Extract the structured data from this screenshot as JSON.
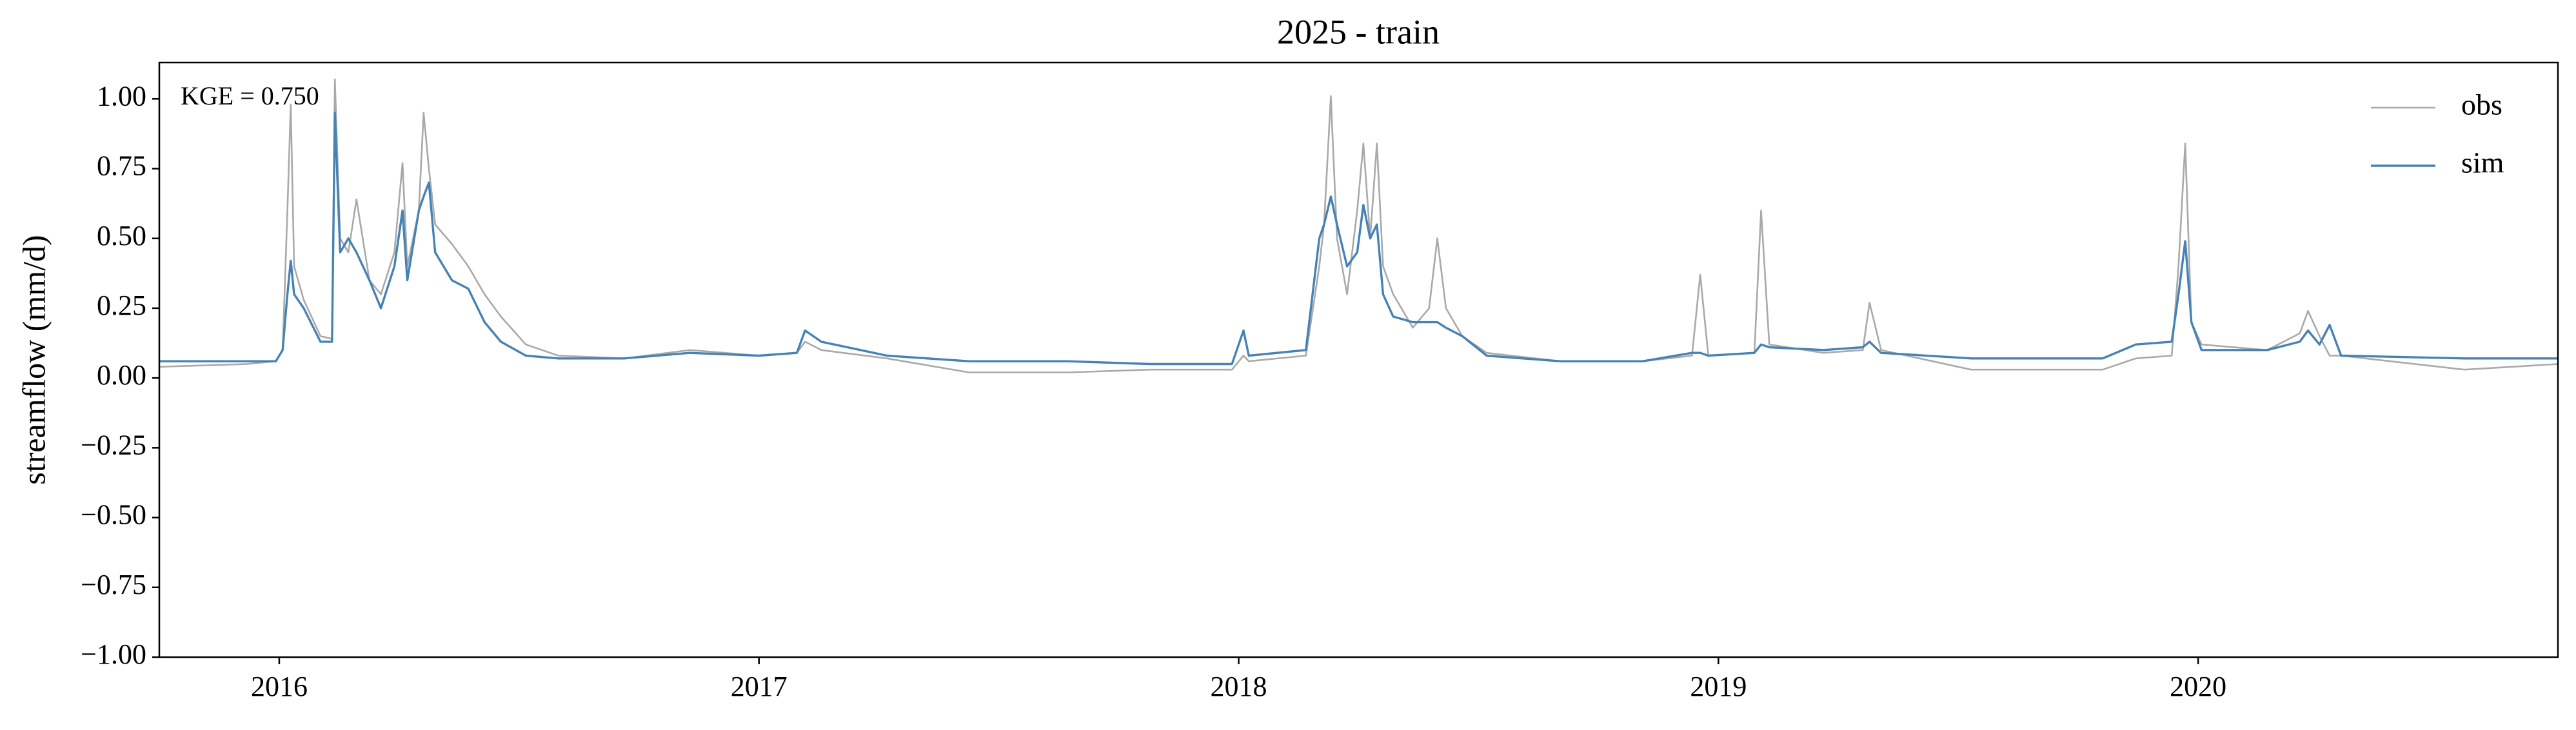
{
  "chart_data": {
    "type": "line",
    "title": "2025 - train",
    "ylabel": "streamflow (mm/d)",
    "annotation": "KGE = 0.750",
    "legend": "upper right",
    "grid": false,
    "xlim": [
      2015.75,
      2020.75
    ],
    "xticks": [
      2016,
      2017,
      2018,
      2019,
      2020
    ],
    "ylim": [
      -1,
      1.13
    ],
    "yticks": [
      {
        "value": 1,
        "label": "1.00"
      },
      {
        "value": 0.75,
        "label": "0.75"
      },
      {
        "value": 0.5,
        "label": "0.50"
      },
      {
        "value": 0.25,
        "label": "0.25"
      },
      {
        "value": 0,
        "label": "0.00"
      },
      {
        "value": -0.25,
        "label": "−0.25"
      },
      {
        "value": -0.5,
        "label": "−0.50"
      },
      {
        "value": -0.75,
        "label": "−0.75"
      },
      {
        "value": -1,
        "label": "−1.00"
      }
    ],
    "x": [
      2015.75,
      2015.932,
      2015.993,
      2016.007,
      2016.017,
      2016.024,
      2016.031,
      2016.051,
      2016.086,
      2016.11,
      2016.116,
      2016.127,
      2016.144,
      2016.161,
      2016.188,
      2016.212,
      2016.24,
      2016.257,
      2016.267,
      2016.291,
      2016.301,
      2016.312,
      2016.325,
      2016.36,
      2016.394,
      2016.428,
      2016.462,
      2016.514,
      2016.582,
      2016.719,
      2016.856,
      2017,
      2017.079,
      2017.096,
      2017.13,
      2017.267,
      2017.438,
      2017.644,
      2017.815,
      2017.986,
      2018.01,
      2018.021,
      2018.14,
      2018.168,
      2018.178,
      2018.192,
      2018.205,
      2018.226,
      2018.247,
      2018.26,
      2018.274,
      2018.288,
      2018.301,
      2018.322,
      2018.363,
      2018.397,
      2018.414,
      2018.432,
      2018.466,
      2018.517,
      2018.671,
      2018.842,
      2018.945,
      2018.962,
      2018.979,
      2019.075,
      2019.089,
      2019.106,
      2019.219,
      2019.301,
      2019.315,
      2019.339,
      2019.527,
      2019.801,
      2019.87,
      2019.945,
      2019.959,
      2019.973,
      2019.986,
      2020.007,
      2020.144,
      2020.212,
      2020.229,
      2020.253,
      2020.274,
      2020.298,
      2020.555,
      2020.75
    ],
    "series": [
      {
        "name": "obs",
        "color": "#a9a9a9",
        "values": [
          0.04,
          0.05,
          0.06,
          0.1,
          0.6,
          0.98,
          0.4,
          0.28,
          0.15,
          0.14,
          1.07,
          0.5,
          0.45,
          0.64,
          0.35,
          0.3,
          0.45,
          0.77,
          0.4,
          0.6,
          0.95,
          0.75,
          0.55,
          0.48,
          0.4,
          0.3,
          0.22,
          0.12,
          0.08,
          0.07,
          0.1,
          0.08,
          0.09,
          0.13,
          0.1,
          0.07,
          0.02,
          0.02,
          0.03,
          0.03,
          0.08,
          0.06,
          0.08,
          0.4,
          0.55,
          1.01,
          0.5,
          0.3,
          0.6,
          0.84,
          0.5,
          0.84,
          0.4,
          0.3,
          0.18,
          0.25,
          0.5,
          0.25,
          0.15,
          0.09,
          0.06,
          0.06,
          0.08,
          0.37,
          0.08,
          0.09,
          0.6,
          0.12,
          0.09,
          0.1,
          0.27,
          0.1,
          0.03,
          0.03,
          0.07,
          0.08,
          0.4,
          0.84,
          0.2,
          0.12,
          0.1,
          0.16,
          0.24,
          0.15,
          0.08,
          0.08,
          0.03,
          0.05
        ]
      },
      {
        "name": "sim",
        "color": "#4682b4",
        "values": [
          0.06,
          0.06,
          0.06,
          0.1,
          0.3,
          0.42,
          0.3,
          0.25,
          0.13,
          0.13,
          0.95,
          0.45,
          0.5,
          0.45,
          0.35,
          0.25,
          0.4,
          0.6,
          0.35,
          0.6,
          0.65,
          0.7,
          0.45,
          0.35,
          0.32,
          0.2,
          0.13,
          0.08,
          0.07,
          0.07,
          0.09,
          0.08,
          0.09,
          0.17,
          0.13,
          0.08,
          0.06,
          0.06,
          0.05,
          0.05,
          0.17,
          0.08,
          0.1,
          0.5,
          0.55,
          0.65,
          0.55,
          0.4,
          0.45,
          0.62,
          0.5,
          0.55,
          0.3,
          0.22,
          0.2,
          0.2,
          0.2,
          0.18,
          0.15,
          0.08,
          0.06,
          0.06,
          0.09,
          0.09,
          0.08,
          0.09,
          0.12,
          0.11,
          0.1,
          0.11,
          0.13,
          0.09,
          0.07,
          0.07,
          0.12,
          0.13,
          0.3,
          0.49,
          0.2,
          0.1,
          0.1,
          0.13,
          0.17,
          0.12,
          0.19,
          0.08,
          0.07,
          0.07
        ]
      }
    ]
  }
}
